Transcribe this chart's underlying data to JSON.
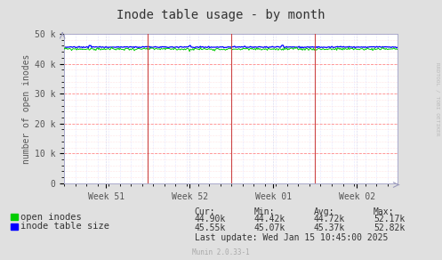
{
  "title": "Inode table usage - by month",
  "ylabel": "number of open inodes",
  "background_color": "#e0e0e0",
  "plot_bg_color": "#ffffff",
  "ylim": [
    0,
    50000
  ],
  "yticks": [
    0,
    10000,
    20000,
    30000,
    40000,
    50000
  ],
  "ytick_labels": [
    "0",
    "10 k",
    "20 k",
    "30 k",
    "40 k",
    "50 k"
  ],
  "x_week_labels": [
    "Week 51",
    "Week 52",
    "Week 01",
    "Week 02"
  ],
  "open_inodes_color": "#00cc00",
  "inode_table_color": "#0000ff",
  "open_inodes_value": 44900,
  "inode_table_value": 45550,
  "open_inodes_noise": 200,
  "inode_table_noise": 100,
  "legend_items": [
    "open inodes",
    "inode table size"
  ],
  "stats_cur_inodes": "44.90k",
  "stats_min_inodes": "44.42k",
  "stats_avg_inodes": "44.72k",
  "stats_max_inodes": "52.17k",
  "stats_cur_table": "45.55k",
  "stats_min_table": "45.07k",
  "stats_avg_table": "45.37k",
  "stats_max_table": "52.82k",
  "last_update": "Last update: Wed Jan 15 10:45:00 2025",
  "munin_version": "Munin 2.0.33-1",
  "watermark": "RRDTOOL / TOBI OETIKER",
  "title_fontsize": 10,
  "axis_label_fontsize": 7,
  "tick_fontsize": 7,
  "legend_fontsize": 7.5,
  "stats_fontsize": 7
}
